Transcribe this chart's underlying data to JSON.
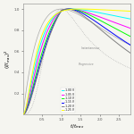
{
  "title": "",
  "xlabel": "t/t_max",
  "ylabel": "(I/I_max)²",
  "xlim": [
    0.0,
    2.8
  ],
  "ylim": [
    0.0,
    1.05
  ],
  "xticks": [
    0.5,
    1.0,
    1.5,
    2.0,
    2.5
  ],
  "yticks": [
    0.2,
    0.4,
    0.6,
    0.8,
    1.0
  ],
  "legend_labels": [
    "-1.00 V",
    "-1.05 V",
    "-1.10 V",
    "-1.15 V",
    "-1.20 V",
    "-1.25 V"
  ],
  "legend_colors": [
    "cyan",
    "magenta",
    "lime",
    "blue",
    "gray",
    "yellow"
  ],
  "instantaneous_label": "Instantaneous",
  "progressive_label": "Progressive",
  "background_color": "#f5f5f0",
  "curve_decay": [
    0.08,
    0.16,
    0.25,
    0.35,
    0.45,
    0.02
  ],
  "curve_rise": [
    3.5,
    3.0,
    2.5,
    2.2,
    2.0,
    4.0
  ]
}
